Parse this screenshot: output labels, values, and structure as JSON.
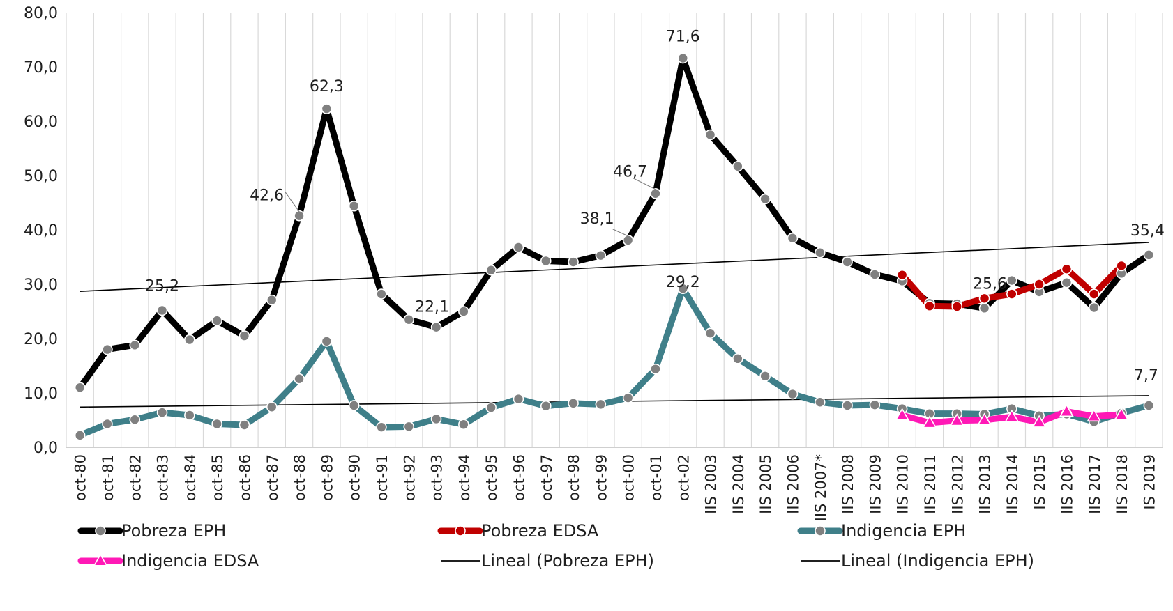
{
  "chart_data": {
    "type": "line",
    "title": "",
    "xlabel": "",
    "ylabel": "",
    "ylim": [
      0,
      80
    ],
    "yticks": [
      "0,0",
      "10,0",
      "20,0",
      "30,0",
      "40,0",
      "50,0",
      "60,0",
      "70,0",
      "80,0"
    ],
    "categories": [
      "oct-80",
      "oct-81",
      "oct-82",
      "oct-83",
      "oct-84",
      "oct-85",
      "oct-86",
      "oct-87",
      "oct-88",
      "oct-89",
      "oct-90",
      "oct-91",
      "oct-92",
      "oct-93",
      "oct-94",
      "oct-95",
      "oct-96",
      "oct-97",
      "oct-98",
      "oct-99",
      "oct-00",
      "oct-01",
      "oct-02",
      "IIS 2003",
      "IIS 2004",
      "IIS 2005",
      "IIS 2006",
      "IIS 2007*",
      "IIS 2008",
      "IIS 2009",
      "IIS 2010",
      "IIS 2011",
      "IIS 2012",
      "IIS 2013",
      "IIS 2014",
      "IS 2015",
      "IIS 2016",
      "IIS 2017",
      "IIS 2018",
      "IS 2019"
    ],
    "grid": "vertical",
    "legend_position": "bottom",
    "series": [
      {
        "name": "Pobreza EPH",
        "color": "#000000",
        "marker_color": "#808080",
        "marker": "circle",
        "values": [
          11.0,
          18.0,
          18.8,
          25.2,
          19.8,
          23.3,
          20.5,
          27.1,
          42.6,
          62.3,
          44.4,
          28.2,
          23.5,
          22.1,
          25.0,
          32.6,
          36.8,
          34.3,
          34.1,
          35.3,
          38.1,
          46.7,
          71.6,
          57.5,
          51.7,
          45.7,
          38.5,
          35.8,
          34.1,
          31.8,
          30.6,
          26.5,
          26.4,
          25.6,
          30.7,
          28.6,
          30.3,
          25.7,
          32.0,
          35.4
        ]
      },
      {
        "name": "Pobreza EDSA",
        "color": "#c00000",
        "marker_color": "#c00000",
        "marker": "circle",
        "values": [
          null,
          null,
          null,
          null,
          null,
          null,
          null,
          null,
          null,
          null,
          null,
          null,
          null,
          null,
          null,
          null,
          null,
          null,
          null,
          null,
          null,
          null,
          null,
          null,
          null,
          null,
          null,
          null,
          null,
          null,
          31.7,
          26.0,
          25.9,
          27.4,
          28.2,
          30.0,
          32.8,
          28.2,
          33.4,
          null
        ]
      },
      {
        "name": "Indigencia EPH",
        "color": "#3f7f89",
        "marker_color": "#808080",
        "marker": "circle",
        "values": [
          2.2,
          4.3,
          5.1,
          6.4,
          5.9,
          4.3,
          4.1,
          7.4,
          12.6,
          19.5,
          7.7,
          3.7,
          3.8,
          5.2,
          4.2,
          7.3,
          8.9,
          7.6,
          8.1,
          7.9,
          9.1,
          14.4,
          29.2,
          21.0,
          16.3,
          13.1,
          9.8,
          8.3,
          7.7,
          7.8,
          7.1,
          6.2,
          6.2,
          6.1,
          7.1,
          5.8,
          6.1,
          4.7,
          6.3,
          7.7
        ]
      },
      {
        "name": "Indigencia EDSA",
        "color": "#ff19b6",
        "marker_color": "#ff19b6",
        "marker": "triangle",
        "values": [
          null,
          null,
          null,
          null,
          null,
          null,
          null,
          null,
          null,
          null,
          null,
          null,
          null,
          null,
          null,
          null,
          null,
          null,
          null,
          null,
          null,
          null,
          null,
          null,
          null,
          null,
          null,
          null,
          null,
          null,
          5.9,
          4.5,
          4.9,
          5.0,
          5.6,
          4.6,
          6.6,
          5.7,
          6.0,
          null
        ]
      }
    ],
    "trendlines": [
      {
        "name": "Lineal (Pobreza EPH)",
        "color": "#000000",
        "start": 28.7,
        "end": 37.7
      },
      {
        "name": "Lineal (Indigencia EPH)",
        "color": "#000000",
        "start": 7.4,
        "end": 9.5
      }
    ],
    "data_labels": [
      {
        "series": 0,
        "index": 3,
        "text": "25,2"
      },
      {
        "series": 0,
        "index": 8,
        "text": "42,6"
      },
      {
        "series": 0,
        "index": 9,
        "text": "62,3"
      },
      {
        "series": 0,
        "index": 13,
        "text": "22,1"
      },
      {
        "series": 0,
        "index": 20,
        "text": "38,1"
      },
      {
        "series": 0,
        "index": 21,
        "text": "46,7"
      },
      {
        "series": 0,
        "index": 22,
        "text": "71,6"
      },
      {
        "series": 2,
        "index": 22,
        "text": "29,2"
      },
      {
        "series": 0,
        "index": 33,
        "text": "25,6"
      },
      {
        "series": 0,
        "index": 39,
        "text": "35,4"
      },
      {
        "series": 2,
        "index": 39,
        "text": "7,7"
      }
    ],
    "legend": [
      {
        "label": "Pobreza EPH",
        "kind": "series",
        "ref": 0
      },
      {
        "label": "Pobreza EDSA",
        "kind": "series",
        "ref": 1
      },
      {
        "label": "Indigencia EPH",
        "kind": "series",
        "ref": 2
      },
      {
        "label": "Indigencia EDSA",
        "kind": "series",
        "ref": 3
      },
      {
        "label": "Lineal (Pobreza EPH)",
        "kind": "trend",
        "ref": 0
      },
      {
        "label": "Lineal (Indigencia EPH)",
        "kind": "trend",
        "ref": 1
      }
    ]
  }
}
